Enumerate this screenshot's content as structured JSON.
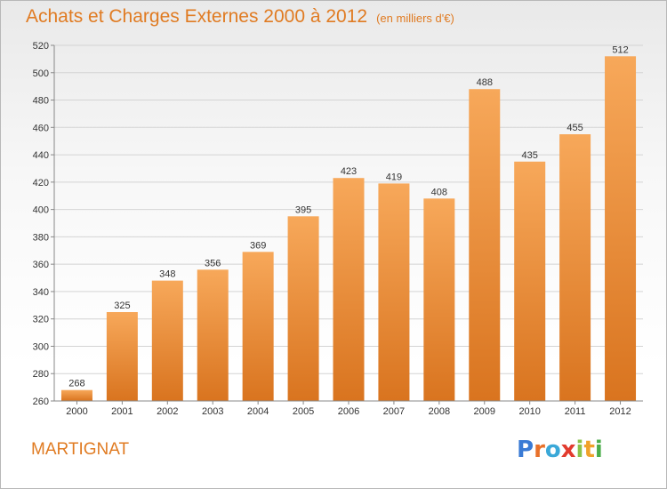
{
  "header": {
    "title": "Achats et Charges Externes 2000 à 2012",
    "unit": "(en milliers d'€)"
  },
  "footer": {
    "place": "MARTIGNAT",
    "logo_text": "Proxiti",
    "logo_letters": [
      {
        "char": "P",
        "color": "#3a7bd5"
      },
      {
        "char": "r",
        "color": "#e8712a"
      },
      {
        "char": "o",
        "color": "#3aa8d8"
      },
      {
        "char": "x",
        "color": "#e23b2e"
      },
      {
        "char": "i",
        "color": "#8bc34a"
      },
      {
        "char": "t",
        "color": "#f0a22a"
      },
      {
        "char": "i",
        "color": "#4cae4c"
      }
    ]
  },
  "colors": {
    "bar_light": "#f7a85a",
    "bar_dark": "#d9741f",
    "accent": "#e07b22"
  },
  "chart_data": {
    "type": "bar",
    "title": "Achats et Charges Externes 2000 à 2012",
    "subtitle": "(en milliers d'€)",
    "categories": [
      "2000",
      "2001",
      "2002",
      "2003",
      "2004",
      "2005",
      "2006",
      "2007",
      "2008",
      "2009",
      "2010",
      "2011",
      "2012"
    ],
    "values": [
      268,
      325,
      348,
      356,
      369,
      395,
      423,
      419,
      408,
      488,
      435,
      455,
      512
    ],
    "ylim": [
      260,
      520
    ],
    "yticks": [
      260,
      280,
      300,
      320,
      340,
      360,
      380,
      400,
      420,
      440,
      460,
      480,
      500,
      520
    ],
    "grid": true,
    "legend": "none"
  }
}
